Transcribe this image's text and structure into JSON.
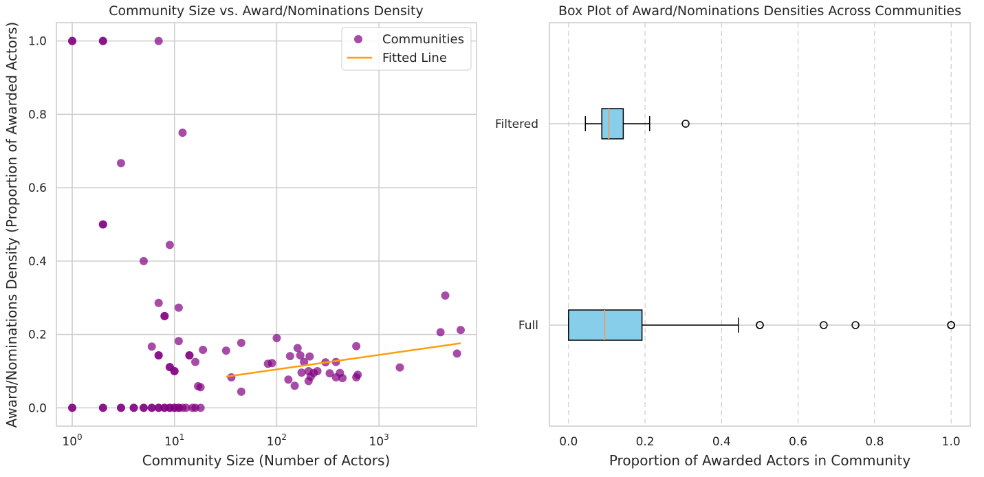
{
  "chart_data": [
    {
      "type": "scatter",
      "title": "Community Size vs. Award/Nominations Density",
      "xlabel": "Community Size (Number of Actors)",
      "ylabel": "Award/Nominations Density (Proportion of Awarded Actors)",
      "xscale": "log",
      "xlim": [
        0.7,
        9000
      ],
      "ylim": [
        -0.05,
        1.05
      ],
      "xticks": [
        1,
        10,
        100,
        1000
      ],
      "xtick_labels": [
        {
          "base": "10",
          "exp": "0"
        },
        {
          "base": "10",
          "exp": "1"
        },
        {
          "base": "10",
          "exp": "2"
        },
        {
          "base": "10",
          "exp": "3"
        }
      ],
      "yticks": [
        0.0,
        0.2,
        0.4,
        0.6,
        0.8,
        1.0
      ],
      "ytick_labels": [
        "0.0",
        "0.2",
        "0.4",
        "0.6",
        "0.8",
        "1.0"
      ],
      "grid": true,
      "legend": "top-right",
      "series": [
        {
          "name": "Communities",
          "marker": "circle",
          "color": "#800080",
          "points": [
            [
              1,
              1.0
            ],
            [
              1,
              1.0
            ],
            [
              2,
              1.0
            ],
            [
              2,
              1.0
            ],
            [
              7,
              1.0
            ],
            [
              12,
              0.75
            ],
            [
              3,
              0.667
            ],
            [
              2,
              0.5
            ],
            [
              2,
              0.5
            ],
            [
              9,
              0.444
            ],
            [
              5,
              0.4
            ],
            [
              4450,
              0.306
            ],
            [
              7,
              0.286
            ],
            [
              11,
              0.273
            ],
            [
              8,
              0.25
            ],
            [
              8,
              0.25
            ],
            [
              6300,
              0.212
            ],
            [
              4000,
              0.206
            ],
            [
              100,
              0.19
            ],
            [
              11,
              0.182
            ],
            [
              45,
              0.177
            ],
            [
              6,
              0.167
            ],
            [
              600,
              0.168
            ],
            [
              160,
              0.163
            ],
            [
              19,
              0.158
            ],
            [
              32,
              0.156
            ],
            [
              5800,
              0.148
            ],
            [
              7,
              0.143
            ],
            [
              7,
              0.143
            ],
            [
              14,
              0.143
            ],
            [
              14,
              0.143
            ],
            [
              170,
              0.143
            ],
            [
              135,
              0.141
            ],
            [
              210,
              0.14
            ],
            [
              16,
              0.125
            ],
            [
              185,
              0.125
            ],
            [
              300,
              0.124
            ],
            [
              380,
              0.125
            ],
            [
              82,
              0.12
            ],
            [
              90,
              0.122
            ],
            [
              9,
              0.111
            ],
            [
              9,
              0.111
            ],
            [
              1600,
              0.11
            ],
            [
              10,
              0.1
            ],
            [
              10,
              0.1
            ],
            [
              250,
              0.1
            ],
            [
              205,
              0.1
            ],
            [
              230,
              0.095
            ],
            [
              175,
              0.096
            ],
            [
              330,
              0.094
            ],
            [
              415,
              0.095
            ],
            [
              620,
              0.09
            ],
            [
              215,
              0.085
            ],
            [
              380,
              0.083
            ],
            [
              600,
              0.083
            ],
            [
              440,
              0.081
            ],
            [
              36,
              0.083
            ],
            [
              130,
              0.077
            ],
            [
              205,
              0.073
            ],
            [
              150,
              0.06
            ],
            [
              17,
              0.059
            ],
            [
              18,
              0.056
            ],
            [
              45,
              0.044
            ],
            [
              1,
              0
            ],
            [
              1,
              0
            ],
            [
              2,
              0
            ],
            [
              2,
              0
            ],
            [
              3,
              0
            ],
            [
              3,
              0
            ],
            [
              4,
              0
            ],
            [
              4,
              0
            ],
            [
              5,
              0
            ],
            [
              5,
              0
            ],
            [
              6,
              0
            ],
            [
              6,
              0
            ],
            [
              7,
              0
            ],
            [
              7,
              0
            ],
            [
              8,
              0
            ],
            [
              8,
              0
            ],
            [
              9,
              0
            ],
            [
              9,
              0
            ],
            [
              10,
              0
            ],
            [
              10,
              0
            ],
            [
              11,
              0
            ],
            [
              11,
              0
            ],
            [
              12,
              0
            ],
            [
              13,
              0
            ],
            [
              15,
              0
            ],
            [
              16,
              0
            ],
            [
              18,
              0
            ]
          ]
        },
        {
          "name": "Fitted Line",
          "type": "line",
          "color": "#ff9d0a",
          "points": [
            [
              32,
              0.085
            ],
            [
              6300,
              0.176
            ]
          ]
        }
      ]
    },
    {
      "type": "box",
      "orientation": "horizontal",
      "title": "Box Plot of Award/Nominations Densities Across Communities",
      "xlabel": "Proportion of Awarded Actors in Community",
      "xlim": [
        -0.05,
        1.05
      ],
      "xticks": [
        0.0,
        0.2,
        0.4,
        0.6,
        0.8,
        1.0
      ],
      "xtick_labels": [
        "0.0",
        "0.2",
        "0.4",
        "0.6",
        "0.8",
        "1.0"
      ],
      "grid": "x-dashed",
      "box_color": "#87ceeb",
      "median_color": "#e8a06a",
      "categories": [
        "Full",
        "Filtered"
      ],
      "boxes": [
        {
          "name": "Full",
          "whislo": 0.0,
          "q1": 0.0,
          "med": 0.094,
          "q3": 0.192,
          "whishi": 0.444,
          "fliers": [
            0.5,
            0.5,
            0.667,
            0.75,
            1.0,
            1.0,
            1.0
          ]
        },
        {
          "name": "Filtered",
          "whislo": 0.044,
          "q1": 0.087,
          "med": 0.105,
          "q3": 0.143,
          "whishi": 0.212,
          "fliers": [
            0.306
          ]
        }
      ]
    }
  ]
}
